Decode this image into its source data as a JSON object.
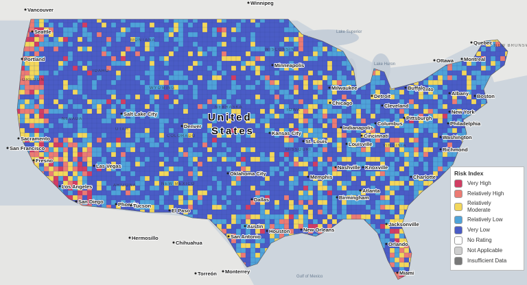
{
  "legend": {
    "title": "Risk Index",
    "items": [
      {
        "label": "Very High",
        "color": "#d13d63"
      },
      {
        "label": "Relatively High",
        "color": "#ec7b73"
      },
      {
        "label": "Relatively Moderate",
        "color": "#f3d75b"
      },
      {
        "label": "Relatively Low",
        "color": "#4fa3d9"
      },
      {
        "label": "Very Low",
        "color": "#4a5cc6"
      },
      {
        "label": "No Rating",
        "color": "#ffffff"
      },
      {
        "label": "Not Applicable",
        "color": "#cfcfcf"
      },
      {
        "label": "Insufficient Data",
        "color": "#787878"
      }
    ]
  },
  "country_label": [
    "United",
    "States"
  ],
  "cities": [
    "Vancouver",
    "Winnipeg",
    "Seattle",
    "Portland",
    "Quebec",
    "Ottawa",
    "Montreal",
    "Toronto",
    "Minneapolis",
    "Milwaukee",
    "Detroit",
    "Chicago",
    "Cleveland",
    "Buffalo",
    "Albany",
    "Boston",
    "New York",
    "Philadelphia",
    "Pittsburgh",
    "Washington",
    "Richmond",
    "Columbus",
    "Indianapolis",
    "Cincinnati",
    "Louisville",
    "St. Louis",
    "Kansas City",
    "Nashville",
    "Knoxville",
    "Charlotte",
    "Atlanta",
    "Memphis",
    "Birmingham",
    "Oklahoma City",
    "Dallas",
    "Austin",
    "Houston",
    "San Antonio",
    "New Orleans",
    "Jacksonville",
    "Orlando",
    "Miami",
    "Salt Lake City",
    "Denver",
    "Sacramento",
    "San Francisco",
    "Fresno",
    "Las Vegas",
    "Los Angeles",
    "San Diego",
    "Phoenix",
    "Tucson",
    "El Paso",
    "Hermosillo",
    "Chihuahua",
    "Monterrey",
    "Torreón"
  ],
  "regions": [
    "NEW BRUNSWICK",
    "MONTANA",
    "WYOMING",
    "NEVADA",
    "ARIZONA",
    "NEW MEXICO",
    "COLORADO",
    "NEBRASKA",
    "IOWA",
    "OREGON",
    "IDAHO",
    "UTAH",
    "WISCONSIN",
    "MISSOURI",
    "VIRGINIA"
  ],
  "water": [
    "Lake Superior",
    "Lake Huron",
    "Gulf of Mexico"
  ]
}
